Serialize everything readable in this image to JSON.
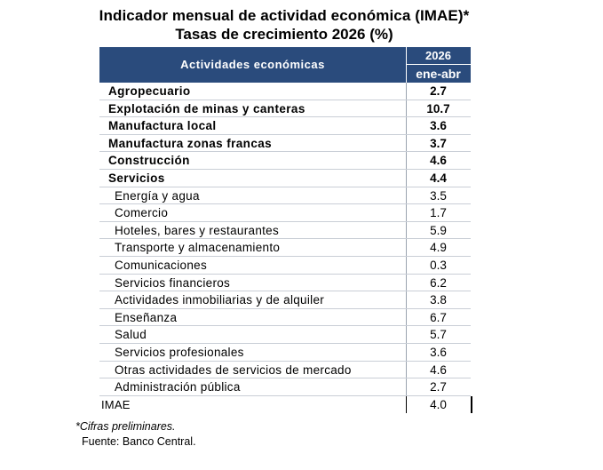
{
  "header": {
    "title": "Indicador mensual de actividad económica (IMAE)*",
    "subtitle": "Tasas de crecimiento 2026 (%)"
  },
  "table": {
    "column_label": "Actividades económicas",
    "year": "2026",
    "period": "ene-abr",
    "rows": [
      {
        "name": "Agropecuario",
        "value": "2.7",
        "style": "bold"
      },
      {
        "name": "Explotación de minas y canteras",
        "value": "10.7",
        "style": "bold"
      },
      {
        "name": "Manufactura local",
        "value": "3.6",
        "style": "bold"
      },
      {
        "name": "Manufactura zonas francas",
        "value": "3.7",
        "style": "bold"
      },
      {
        "name": "Construcción",
        "value": "4.6",
        "style": "bold"
      },
      {
        "name": "Servicios",
        "value": "4.4",
        "style": "bold"
      },
      {
        "name": "Energía y agua",
        "value": "3.5",
        "style": "sub"
      },
      {
        "name": "Comercio",
        "value": "1.7",
        "style": "sub"
      },
      {
        "name": "Hoteles, bares y restaurantes",
        "value": "5.9",
        "style": "sub"
      },
      {
        "name": "Transporte y almacenamiento",
        "value": "4.9",
        "style": "sub"
      },
      {
        "name": "Comunicaciones",
        "value": "0.3",
        "style": "sub"
      },
      {
        "name": "Servicios financieros",
        "value": "6.2",
        "style": "sub"
      },
      {
        "name": "Actividades inmobiliarias y de alquiler",
        "value": "3.8",
        "style": "sub"
      },
      {
        "name": "Enseñanza",
        "value": "6.7",
        "style": "sub"
      },
      {
        "name": "Salud",
        "value": "5.7",
        "style": "sub"
      },
      {
        "name": "Servicios profesionales",
        "value": "3.6",
        "style": "sub"
      },
      {
        "name": "Otras actividades de servicios de mercado",
        "value": "4.6",
        "style": "sub"
      },
      {
        "name": "Administración pública",
        "value": "2.7",
        "style": "sub"
      }
    ],
    "total": {
      "name": "IMAE",
      "value": "4.0"
    }
  },
  "footnotes": {
    "note": "*Cifras preliminares.",
    "source": "Fuente: Banco Central."
  }
}
